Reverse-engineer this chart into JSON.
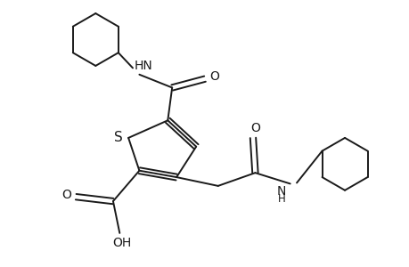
{
  "background_color": "#ffffff",
  "line_color": "#1a1a1a",
  "line_width": 1.4,
  "font_size": 10,
  "figsize": [
    4.6,
    3.0
  ],
  "dpi": 100,
  "xlim": [
    0,
    9.2
  ],
  "ylim": [
    0,
    6.0
  ]
}
